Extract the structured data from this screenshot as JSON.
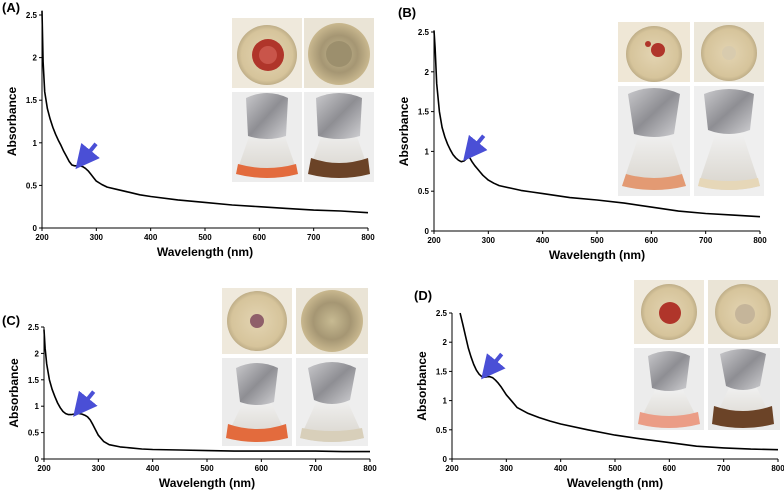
{
  "figure": {
    "panels": [
      "(A)",
      "(B)",
      "(C)",
      "(D)"
    ]
  },
  "chart_data": [
    {
      "type": "line",
      "panel": "(A)",
      "xlabel": "Wavelength (nm)",
      "ylabel": "Absorbance",
      "xlim": [
        200,
        800
      ],
      "ylim": [
        0,
        2.5
      ],
      "xticks": [
        200,
        300,
        400,
        500,
        600,
        700,
        800
      ],
      "yticks": [
        0,
        0.5,
        1,
        1.5,
        2,
        2.5
      ],
      "x": [
        200,
        202,
        205,
        210,
        215,
        220,
        225,
        230,
        235,
        240,
        245,
        250,
        255,
        260,
        265,
        270,
        275,
        280,
        285,
        290,
        295,
        300,
        310,
        320,
        340,
        360,
        380,
        400,
        450,
        500,
        550,
        600,
        650,
        700,
        750,
        800
      ],
      "y": [
        2.55,
        1.95,
        1.6,
        1.4,
        1.28,
        1.18,
        1.1,
        1.03,
        0.97,
        0.9,
        0.84,
        0.78,
        0.74,
        0.73,
        0.73,
        0.73,
        0.72,
        0.7,
        0.67,
        0.63,
        0.59,
        0.55,
        0.51,
        0.48,
        0.45,
        0.42,
        0.39,
        0.37,
        0.33,
        0.3,
        0.27,
        0.25,
        0.23,
        0.21,
        0.2,
        0.18
      ],
      "annotation": {
        "type": "arrow",
        "x": 270,
        "y": 0.73
      }
    },
    {
      "type": "line",
      "panel": "(B)",
      "xlabel": "Wavelength (nm)",
      "ylabel": "Absorbance",
      "xlim": [
        200,
        800
      ],
      "ylim": [
        0,
        2.5
      ],
      "xticks": [
        200,
        300,
        400,
        500,
        600,
        700,
        800
      ],
      "yticks": [
        0,
        0.5,
        1,
        1.5,
        2,
        2.5
      ],
      "x": [
        200,
        202,
        205,
        210,
        215,
        220,
        225,
        230,
        235,
        240,
        245,
        250,
        255,
        260,
        265,
        270,
        275,
        280,
        285,
        290,
        295,
        300,
        310,
        320,
        340,
        360,
        380,
        400,
        450,
        500,
        550,
        600,
        650,
        700,
        750,
        800
      ],
      "y": [
        2.52,
        2.3,
        1.85,
        1.5,
        1.3,
        1.18,
        1.09,
        1.02,
        0.96,
        0.92,
        0.89,
        0.87,
        0.88,
        0.91,
        0.93,
        0.87,
        0.82,
        0.78,
        0.74,
        0.7,
        0.67,
        0.64,
        0.6,
        0.57,
        0.54,
        0.51,
        0.49,
        0.47,
        0.42,
        0.39,
        0.35,
        0.3,
        0.25,
        0.22,
        0.2,
        0.18
      ],
      "annotation": {
        "type": "arrow",
        "x": 262,
        "y": 0.92
      }
    },
    {
      "type": "line",
      "panel": "(C)",
      "xlabel": "Wavelength (nm)",
      "ylabel": "Absorbance",
      "xlim": [
        200,
        800
      ],
      "ylim": [
        0,
        2.5
      ],
      "xticks": [
        200,
        300,
        400,
        500,
        600,
        700,
        800
      ],
      "yticks": [
        0,
        0.5,
        1,
        1.5,
        2,
        2.5
      ],
      "x": [
        200,
        202,
        205,
        210,
        215,
        220,
        225,
        230,
        235,
        240,
        245,
        250,
        255,
        260,
        265,
        270,
        275,
        280,
        285,
        290,
        295,
        300,
        310,
        320,
        340,
        360,
        380,
        400,
        450,
        500,
        550,
        600,
        650,
        700,
        750,
        800
      ],
      "y": [
        2.45,
        2.1,
        1.8,
        1.5,
        1.32,
        1.18,
        1.06,
        0.97,
        0.9,
        0.86,
        0.84,
        0.84,
        0.85,
        0.86,
        0.86,
        0.85,
        0.83,
        0.8,
        0.74,
        0.65,
        0.55,
        0.45,
        0.33,
        0.27,
        0.23,
        0.21,
        0.19,
        0.18,
        0.17,
        0.16,
        0.15,
        0.15,
        0.15,
        0.15,
        0.14,
        0.14
      ],
      "annotation": {
        "type": "arrow",
        "x": 262,
        "y": 0.86
      }
    },
    {
      "type": "line",
      "panel": "(D)",
      "xlabel": "Wavelength (nm)",
      "ylabel": "Absorbance",
      "xlim": [
        200,
        800
      ],
      "ylim": [
        0,
        2.5
      ],
      "xticks": [
        200,
        300,
        400,
        500,
        600,
        700,
        800
      ],
      "yticks": [
        0,
        0.5,
        1,
        1.5,
        2,
        2.5
      ],
      "x": [
        215,
        220,
        225,
        230,
        235,
        240,
        245,
        250,
        255,
        260,
        265,
        270,
        275,
        280,
        285,
        290,
        295,
        300,
        310,
        320,
        340,
        360,
        380,
        400,
        450,
        500,
        550,
        600,
        650,
        700,
        750,
        800
      ],
      "y": [
        2.5,
        2.3,
        2.1,
        1.9,
        1.75,
        1.62,
        1.52,
        1.45,
        1.41,
        1.4,
        1.41,
        1.41,
        1.39,
        1.35,
        1.3,
        1.24,
        1.17,
        1.1,
        0.99,
        0.88,
        0.78,
        0.71,
        0.65,
        0.6,
        0.5,
        0.41,
        0.34,
        0.28,
        0.22,
        0.19,
        0.17,
        0.16
      ],
      "annotation": {
        "type": "arrow",
        "x": 262,
        "y": 1.42
      }
    }
  ],
  "photos": {
    "colors": {
      "plate_tan": "#d9c8a3",
      "plate_red": "#b0352a",
      "plate_olive": "#b1a47e",
      "foil": "#a9a9ad",
      "flask_orange": "#e36b3d",
      "flask_brown": "#6b4327",
      "flask_clear": "#e8e2d5",
      "arrow_blue": "#4a4fd6"
    }
  }
}
